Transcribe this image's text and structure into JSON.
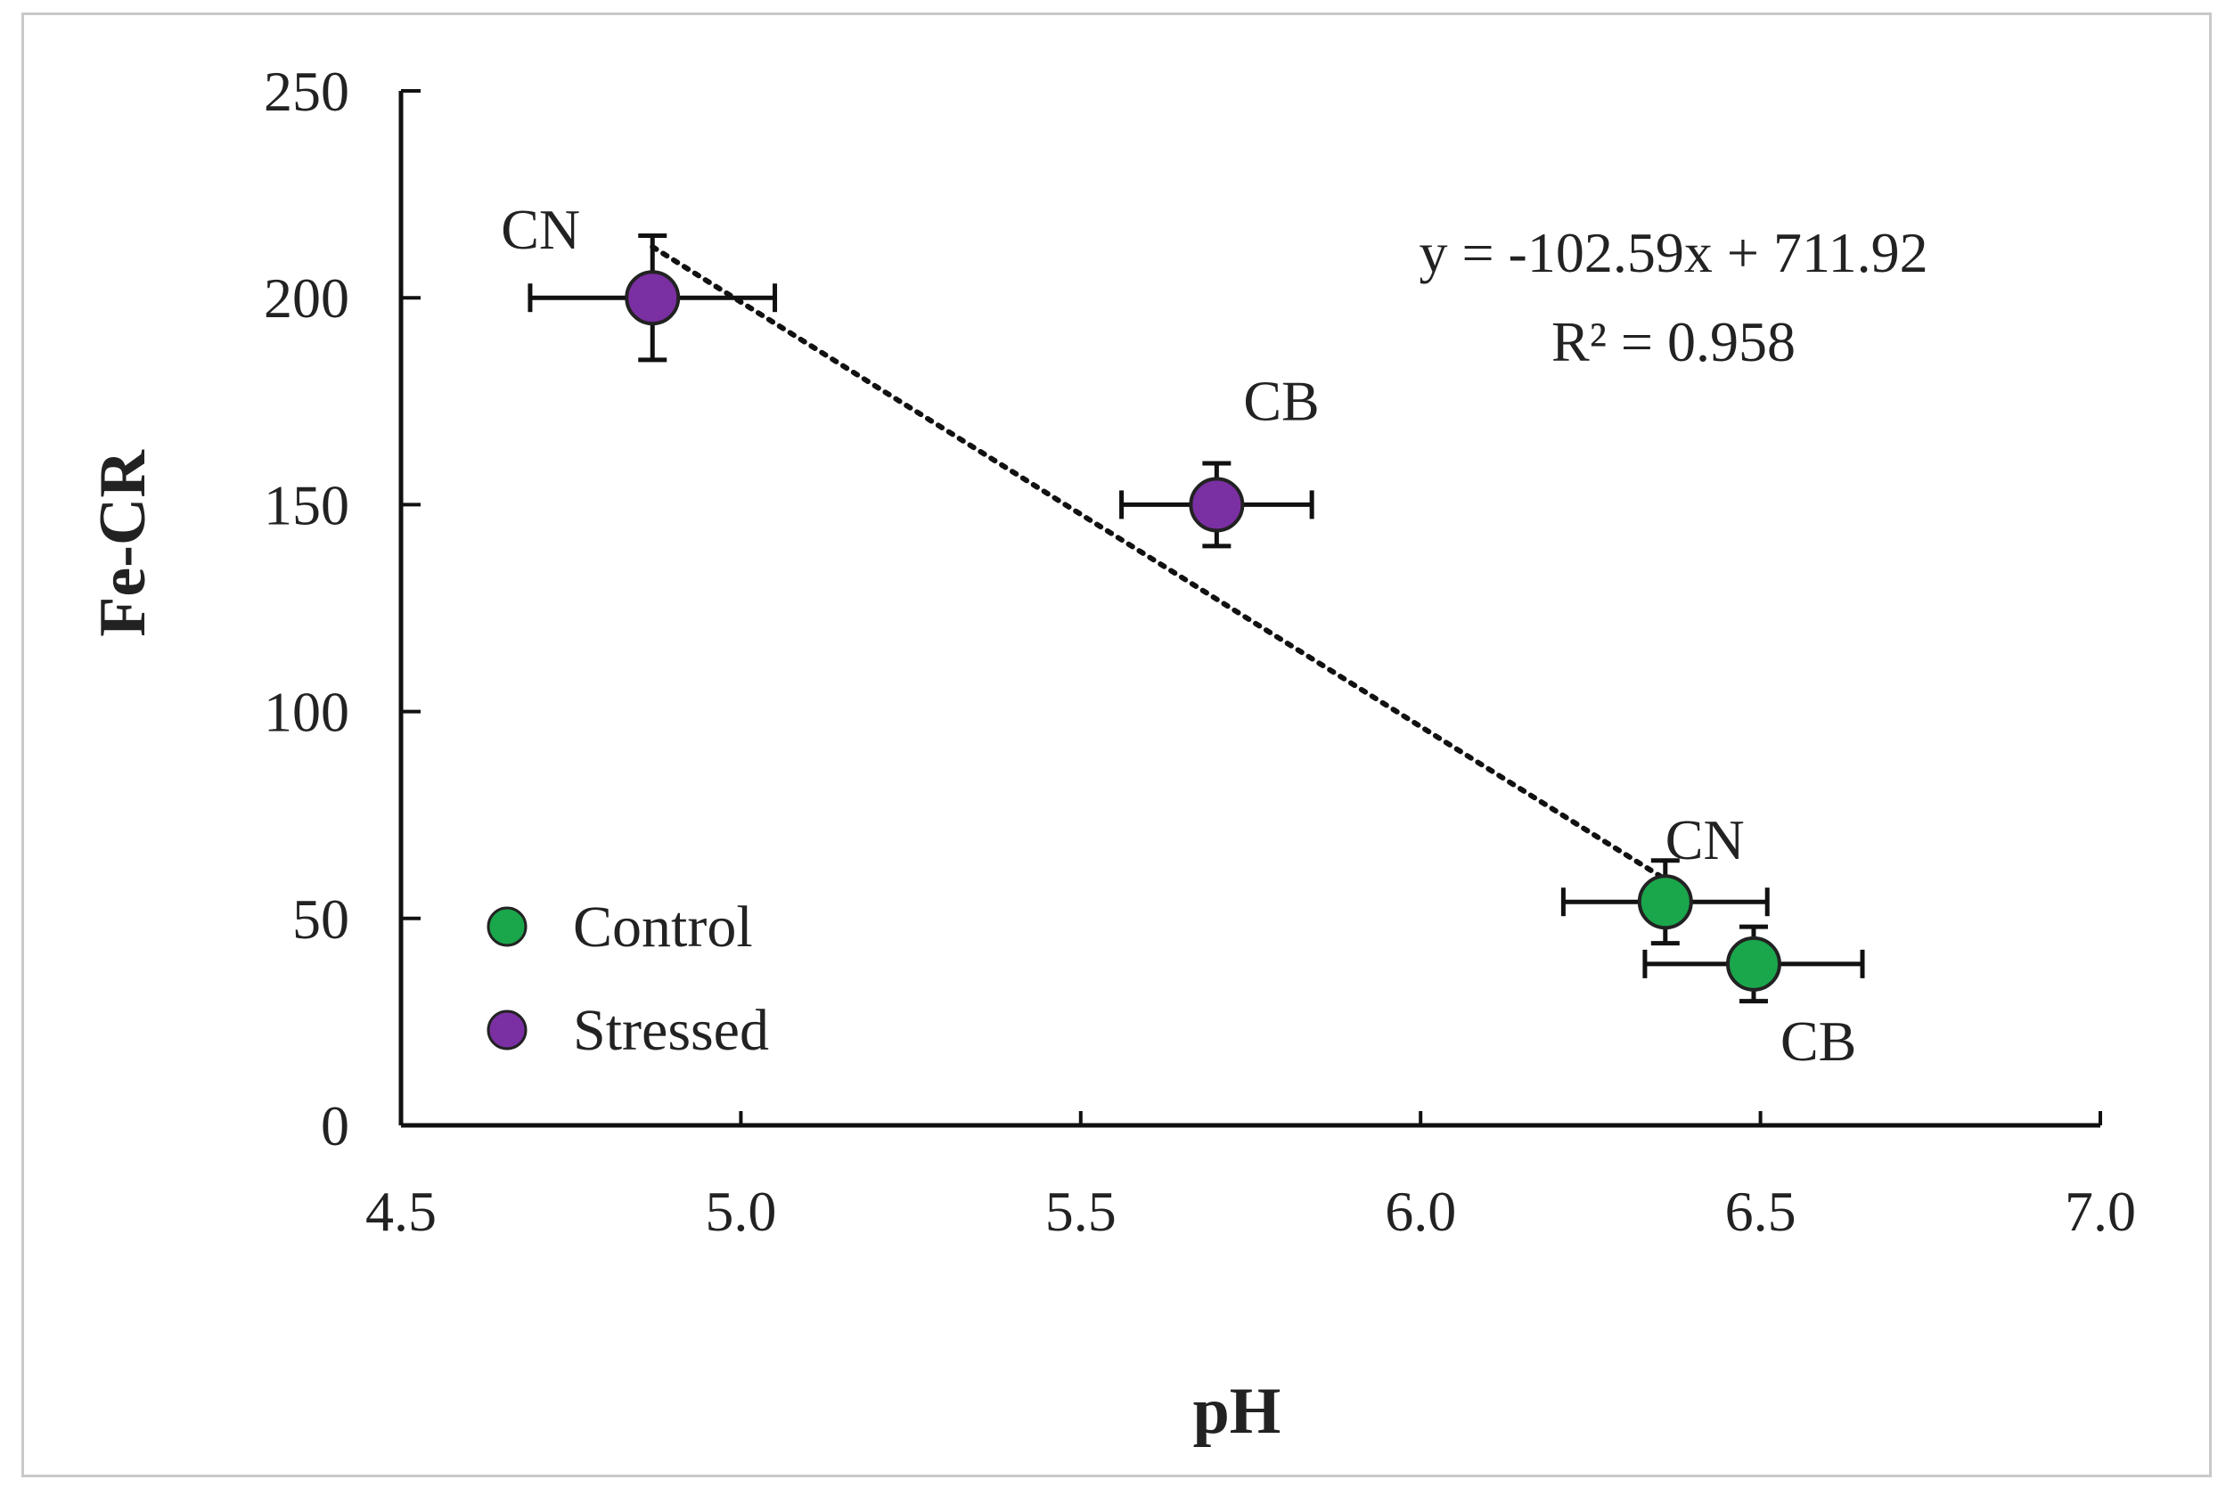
{
  "chart_data": {
    "type": "scatter",
    "xlabel": "pH",
    "ylabel": "Fe-CR",
    "xlim": [
      4.5,
      7.0
    ],
    "ylim": [
      0,
      250
    ],
    "xticks": [
      "4.5",
      "5.0",
      "5.5",
      "6.0",
      "6.5",
      "7.0"
    ],
    "yticks": [
      "0",
      "50",
      "100",
      "150",
      "200",
      "250"
    ],
    "series": [
      {
        "name": "Control",
        "color": "#1aa64b",
        "points": [
          {
            "label": "CN",
            "x": 6.36,
            "y": 54,
            "x_err": 0.15,
            "y_err": 10
          },
          {
            "label": "CB",
            "x": 6.49,
            "y": 39,
            "x_err": 0.16,
            "y_err": 9
          }
        ]
      },
      {
        "name": "Stressed",
        "color": "#7a2fa2",
        "points": [
          {
            "label": "CN",
            "x": 4.87,
            "y": 200,
            "x_err": 0.18,
            "y_err": 15
          },
          {
            "label": "CB",
            "x": 5.7,
            "y": 150,
            "x_err": 0.14,
            "y_err": 10
          }
        ]
      }
    ],
    "trendline": {
      "style": "dotted",
      "slope": -102.59,
      "intercept": 711.92,
      "x_range": [
        4.87,
        6.36
      ],
      "equation": "y = -102.59x + 711.92",
      "r_squared": "R² = 0.958"
    },
    "legend": {
      "position": "bottom-left",
      "entries": [
        "Control",
        "Stressed"
      ]
    }
  }
}
